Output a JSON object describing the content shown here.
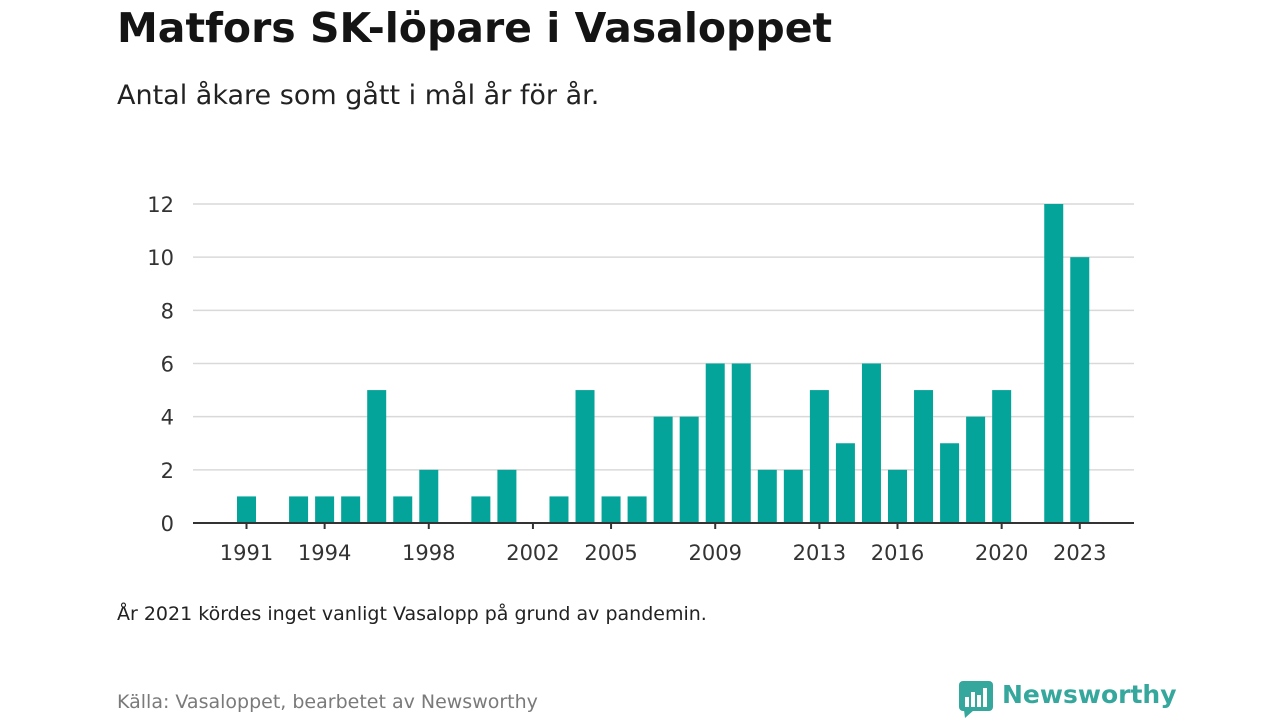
{
  "header": {
    "title": "Matfors SK-löpare i Vasaloppet",
    "subtitle": "Antal åkare som gått i mål år för år."
  },
  "footer": {
    "note": "År 2021 kördes inget vanligt Vasalopp på grund av pandemin.",
    "source": "Källa: Vasaloppet, bearbetet av Newsworthy",
    "brand": "Newsworthy",
    "brand_icon": "newsworthy-logo-icon"
  },
  "colors": {
    "bar": "#05a49a",
    "brand": "#35a79c",
    "grid": "#d9d9d9",
    "axis": "#333333"
  },
  "chart_data": {
    "type": "bar",
    "title": "Matfors SK-löpare i Vasaloppet",
    "subtitle": "Antal åkare som gått i mål år för år.",
    "xlabel": "",
    "ylabel": "",
    "categories": [
      1991,
      1992,
      1993,
      1994,
      1995,
      1996,
      1997,
      1998,
      1999,
      2000,
      2001,
      2002,
      2003,
      2004,
      2005,
      2006,
      2007,
      2008,
      2009,
      2010,
      2011,
      2012,
      2013,
      2014,
      2015,
      2016,
      2017,
      2018,
      2019,
      2020,
      2021,
      2022,
      2023
    ],
    "values": [
      1,
      0,
      1,
      1,
      1,
      5,
      1,
      2,
      0,
      1,
      2,
      0,
      1,
      5,
      1,
      1,
      4,
      4,
      6,
      6,
      2,
      2,
      5,
      3,
      6,
      2,
      5,
      3,
      4,
      5,
      0,
      12,
      10
    ],
    "x_tick_labels": [
      "1991",
      "1994",
      "1998",
      "2002",
      "2005",
      "2009",
      "2013",
      "2016",
      "2020",
      "2023"
    ],
    "y_ticks": [
      0,
      2,
      4,
      6,
      8,
      10,
      12
    ],
    "ylim": [
      0,
      12
    ],
    "grid": true
  }
}
